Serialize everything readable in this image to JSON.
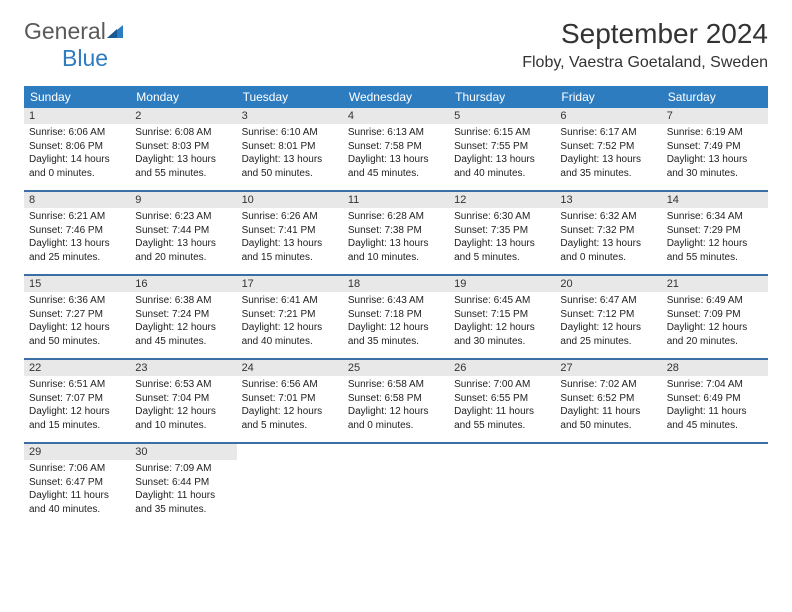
{
  "logo": {
    "text1": "General",
    "text2": "Blue"
  },
  "title": "September 2024",
  "location": "Floby, Vaestra Goetaland, Sweden",
  "colors": {
    "header_bg": "#2e7cc0",
    "header_text": "#ffffff",
    "daynum_bg": "#e8e8e8",
    "week_border": "#3a6ea5",
    "body_text": "#222222",
    "logo_gray": "#5a5a5a",
    "logo_blue": "#2e7cc0"
  },
  "typography": {
    "title_fontsize": 28,
    "location_fontsize": 16,
    "header_fontsize": 12,
    "daynum_fontsize": 11,
    "body_fontsize": 10
  },
  "day_headers": [
    "Sunday",
    "Monday",
    "Tuesday",
    "Wednesday",
    "Thursday",
    "Friday",
    "Saturday"
  ],
  "days": [
    {
      "n": "1",
      "sr": "Sunrise: 6:06 AM",
      "ss": "Sunset: 8:06 PM",
      "dl1": "Daylight: 14 hours",
      "dl2": "and 0 minutes."
    },
    {
      "n": "2",
      "sr": "Sunrise: 6:08 AM",
      "ss": "Sunset: 8:03 PM",
      "dl1": "Daylight: 13 hours",
      "dl2": "and 55 minutes."
    },
    {
      "n": "3",
      "sr": "Sunrise: 6:10 AM",
      "ss": "Sunset: 8:01 PM",
      "dl1": "Daylight: 13 hours",
      "dl2": "and 50 minutes."
    },
    {
      "n": "4",
      "sr": "Sunrise: 6:13 AM",
      "ss": "Sunset: 7:58 PM",
      "dl1": "Daylight: 13 hours",
      "dl2": "and 45 minutes."
    },
    {
      "n": "5",
      "sr": "Sunrise: 6:15 AM",
      "ss": "Sunset: 7:55 PM",
      "dl1": "Daylight: 13 hours",
      "dl2": "and 40 minutes."
    },
    {
      "n": "6",
      "sr": "Sunrise: 6:17 AM",
      "ss": "Sunset: 7:52 PM",
      "dl1": "Daylight: 13 hours",
      "dl2": "and 35 minutes."
    },
    {
      "n": "7",
      "sr": "Sunrise: 6:19 AM",
      "ss": "Sunset: 7:49 PM",
      "dl1": "Daylight: 13 hours",
      "dl2": "and 30 minutes."
    },
    {
      "n": "8",
      "sr": "Sunrise: 6:21 AM",
      "ss": "Sunset: 7:46 PM",
      "dl1": "Daylight: 13 hours",
      "dl2": "and 25 minutes."
    },
    {
      "n": "9",
      "sr": "Sunrise: 6:23 AM",
      "ss": "Sunset: 7:44 PM",
      "dl1": "Daylight: 13 hours",
      "dl2": "and 20 minutes."
    },
    {
      "n": "10",
      "sr": "Sunrise: 6:26 AM",
      "ss": "Sunset: 7:41 PM",
      "dl1": "Daylight: 13 hours",
      "dl2": "and 15 minutes."
    },
    {
      "n": "11",
      "sr": "Sunrise: 6:28 AM",
      "ss": "Sunset: 7:38 PM",
      "dl1": "Daylight: 13 hours",
      "dl2": "and 10 minutes."
    },
    {
      "n": "12",
      "sr": "Sunrise: 6:30 AM",
      "ss": "Sunset: 7:35 PM",
      "dl1": "Daylight: 13 hours",
      "dl2": "and 5 minutes."
    },
    {
      "n": "13",
      "sr": "Sunrise: 6:32 AM",
      "ss": "Sunset: 7:32 PM",
      "dl1": "Daylight: 13 hours",
      "dl2": "and 0 minutes."
    },
    {
      "n": "14",
      "sr": "Sunrise: 6:34 AM",
      "ss": "Sunset: 7:29 PM",
      "dl1": "Daylight: 12 hours",
      "dl2": "and 55 minutes."
    },
    {
      "n": "15",
      "sr": "Sunrise: 6:36 AM",
      "ss": "Sunset: 7:27 PM",
      "dl1": "Daylight: 12 hours",
      "dl2": "and 50 minutes."
    },
    {
      "n": "16",
      "sr": "Sunrise: 6:38 AM",
      "ss": "Sunset: 7:24 PM",
      "dl1": "Daylight: 12 hours",
      "dl2": "and 45 minutes."
    },
    {
      "n": "17",
      "sr": "Sunrise: 6:41 AM",
      "ss": "Sunset: 7:21 PM",
      "dl1": "Daylight: 12 hours",
      "dl2": "and 40 minutes."
    },
    {
      "n": "18",
      "sr": "Sunrise: 6:43 AM",
      "ss": "Sunset: 7:18 PM",
      "dl1": "Daylight: 12 hours",
      "dl2": "and 35 minutes."
    },
    {
      "n": "19",
      "sr": "Sunrise: 6:45 AM",
      "ss": "Sunset: 7:15 PM",
      "dl1": "Daylight: 12 hours",
      "dl2": "and 30 minutes."
    },
    {
      "n": "20",
      "sr": "Sunrise: 6:47 AM",
      "ss": "Sunset: 7:12 PM",
      "dl1": "Daylight: 12 hours",
      "dl2": "and 25 minutes."
    },
    {
      "n": "21",
      "sr": "Sunrise: 6:49 AM",
      "ss": "Sunset: 7:09 PM",
      "dl1": "Daylight: 12 hours",
      "dl2": "and 20 minutes."
    },
    {
      "n": "22",
      "sr": "Sunrise: 6:51 AM",
      "ss": "Sunset: 7:07 PM",
      "dl1": "Daylight: 12 hours",
      "dl2": "and 15 minutes."
    },
    {
      "n": "23",
      "sr": "Sunrise: 6:53 AM",
      "ss": "Sunset: 7:04 PM",
      "dl1": "Daylight: 12 hours",
      "dl2": "and 10 minutes."
    },
    {
      "n": "24",
      "sr": "Sunrise: 6:56 AM",
      "ss": "Sunset: 7:01 PM",
      "dl1": "Daylight: 12 hours",
      "dl2": "and 5 minutes."
    },
    {
      "n": "25",
      "sr": "Sunrise: 6:58 AM",
      "ss": "Sunset: 6:58 PM",
      "dl1": "Daylight: 12 hours",
      "dl2": "and 0 minutes."
    },
    {
      "n": "26",
      "sr": "Sunrise: 7:00 AM",
      "ss": "Sunset: 6:55 PM",
      "dl1": "Daylight: 11 hours",
      "dl2": "and 55 minutes."
    },
    {
      "n": "27",
      "sr": "Sunrise: 7:02 AM",
      "ss": "Sunset: 6:52 PM",
      "dl1": "Daylight: 11 hours",
      "dl2": "and 50 minutes."
    },
    {
      "n": "28",
      "sr": "Sunrise: 7:04 AM",
      "ss": "Sunset: 6:49 PM",
      "dl1": "Daylight: 11 hours",
      "dl2": "and 45 minutes."
    },
    {
      "n": "29",
      "sr": "Sunrise: 7:06 AM",
      "ss": "Sunset: 6:47 PM",
      "dl1": "Daylight: 11 hours",
      "dl2": "and 40 minutes."
    },
    {
      "n": "30",
      "sr": "Sunrise: 7:09 AM",
      "ss": "Sunset: 6:44 PM",
      "dl1": "Daylight: 11 hours",
      "dl2": "and 35 minutes."
    }
  ],
  "grid": {
    "start_offset": 0,
    "total_cells": 35
  }
}
